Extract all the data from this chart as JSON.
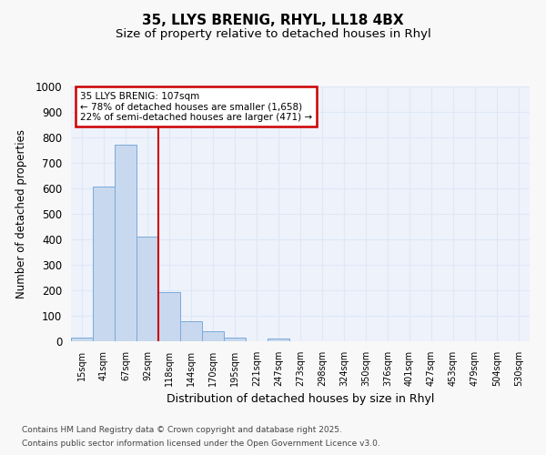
{
  "title1": "35, LLYS BRENIG, RHYL, LL18 4BX",
  "title2": "Size of property relative to detached houses in Rhyl",
  "xlabel": "Distribution of detached houses by size in Rhyl",
  "ylabel": "Number of detached properties",
  "categories": [
    "15sqm",
    "41sqm",
    "67sqm",
    "92sqm",
    "118sqm",
    "144sqm",
    "170sqm",
    "195sqm",
    "221sqm",
    "247sqm",
    "273sqm",
    "298sqm",
    "324sqm",
    "350sqm",
    "376sqm",
    "401sqm",
    "427sqm",
    "453sqm",
    "479sqm",
    "504sqm",
    "530sqm"
  ],
  "values": [
    15,
    608,
    770,
    410,
    193,
    78,
    40,
    15,
    0,
    12,
    0,
    0,
    0,
    0,
    0,
    0,
    0,
    0,
    0,
    0,
    0
  ],
  "bar_color": "#c8d8ee",
  "bar_edge_color": "#7aaadc",
  "red_line_x": 3.5,
  "annotation_title": "35 LLYS BRENIG: 107sqm",
  "annotation_line1": "← 78% of detached houses are smaller (1,658)",
  "annotation_line2": "22% of semi-detached houses are larger (471) →",
  "annotation_box_color": "#ffffff",
  "annotation_box_edge": "#cc0000",
  "red_line_color": "#cc0000",
  "ylim": [
    0,
    1000
  ],
  "yticks": [
    0,
    100,
    200,
    300,
    400,
    500,
    600,
    700,
    800,
    900,
    1000
  ],
  "footer1": "Contains HM Land Registry data © Crown copyright and database right 2025.",
  "footer2": "Contains public sector information licensed under the Open Government Licence v3.0.",
  "plot_bg_color": "#eef2fa",
  "fig_bg_color": "#f8f8f8",
  "grid_color": "#dde8f8",
  "title_fontsize": 11,
  "subtitle_fontsize": 9.5
}
